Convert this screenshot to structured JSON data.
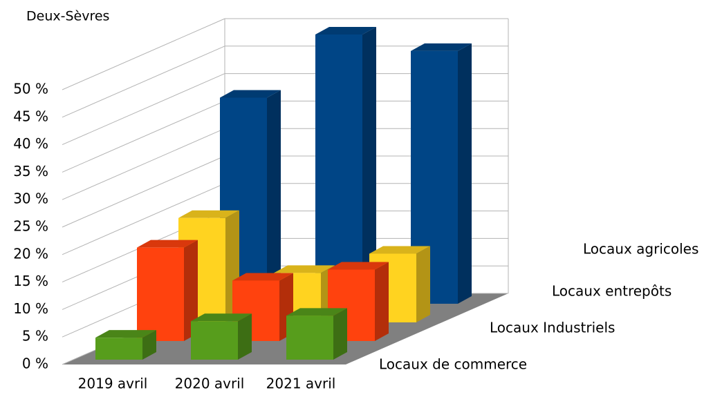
{
  "chart_data": {
    "type": "bar3d",
    "title": "Deux-Sèvres",
    "categories": [
      "2019 avril",
      "2020  avril",
      "2021 avril"
    ],
    "series": [
      {
        "name": "Locaux de commerce",
        "color": "#579d1c",
        "values": [
          4,
          7,
          8
        ]
      },
      {
        "name": "Locaux Industriels",
        "color": "#ff420e",
        "values": [
          17,
          11,
          13
        ]
      },
      {
        "name": "Locaux entrepôts",
        "color": "#ffd320",
        "values": [
          19,
          9,
          12.5
        ]
      },
      {
        "name": "Locaux agricoles",
        "color": "#004586",
        "values": [
          37.5,
          49,
          46
        ]
      }
    ],
    "ylim": [
      0,
      50
    ],
    "yticks": [
      {
        "value": 0,
        "label": "0 %"
      },
      {
        "value": 5,
        "label": "5 %"
      },
      {
        "value": 10,
        "label": "10 %"
      },
      {
        "value": 15,
        "label": "15 %"
      },
      {
        "value": 20,
        "label": "20 %"
      },
      {
        "value": 25,
        "label": "25 %"
      },
      {
        "value": 30,
        "label": "30 %"
      },
      {
        "value": 35,
        "label": "35 %"
      },
      {
        "value": 40,
        "label": "40 %"
      },
      {
        "value": 45,
        "label": "45 %"
      },
      {
        "value": 50,
        "label": "50 %"
      }
    ],
    "grid": true
  }
}
